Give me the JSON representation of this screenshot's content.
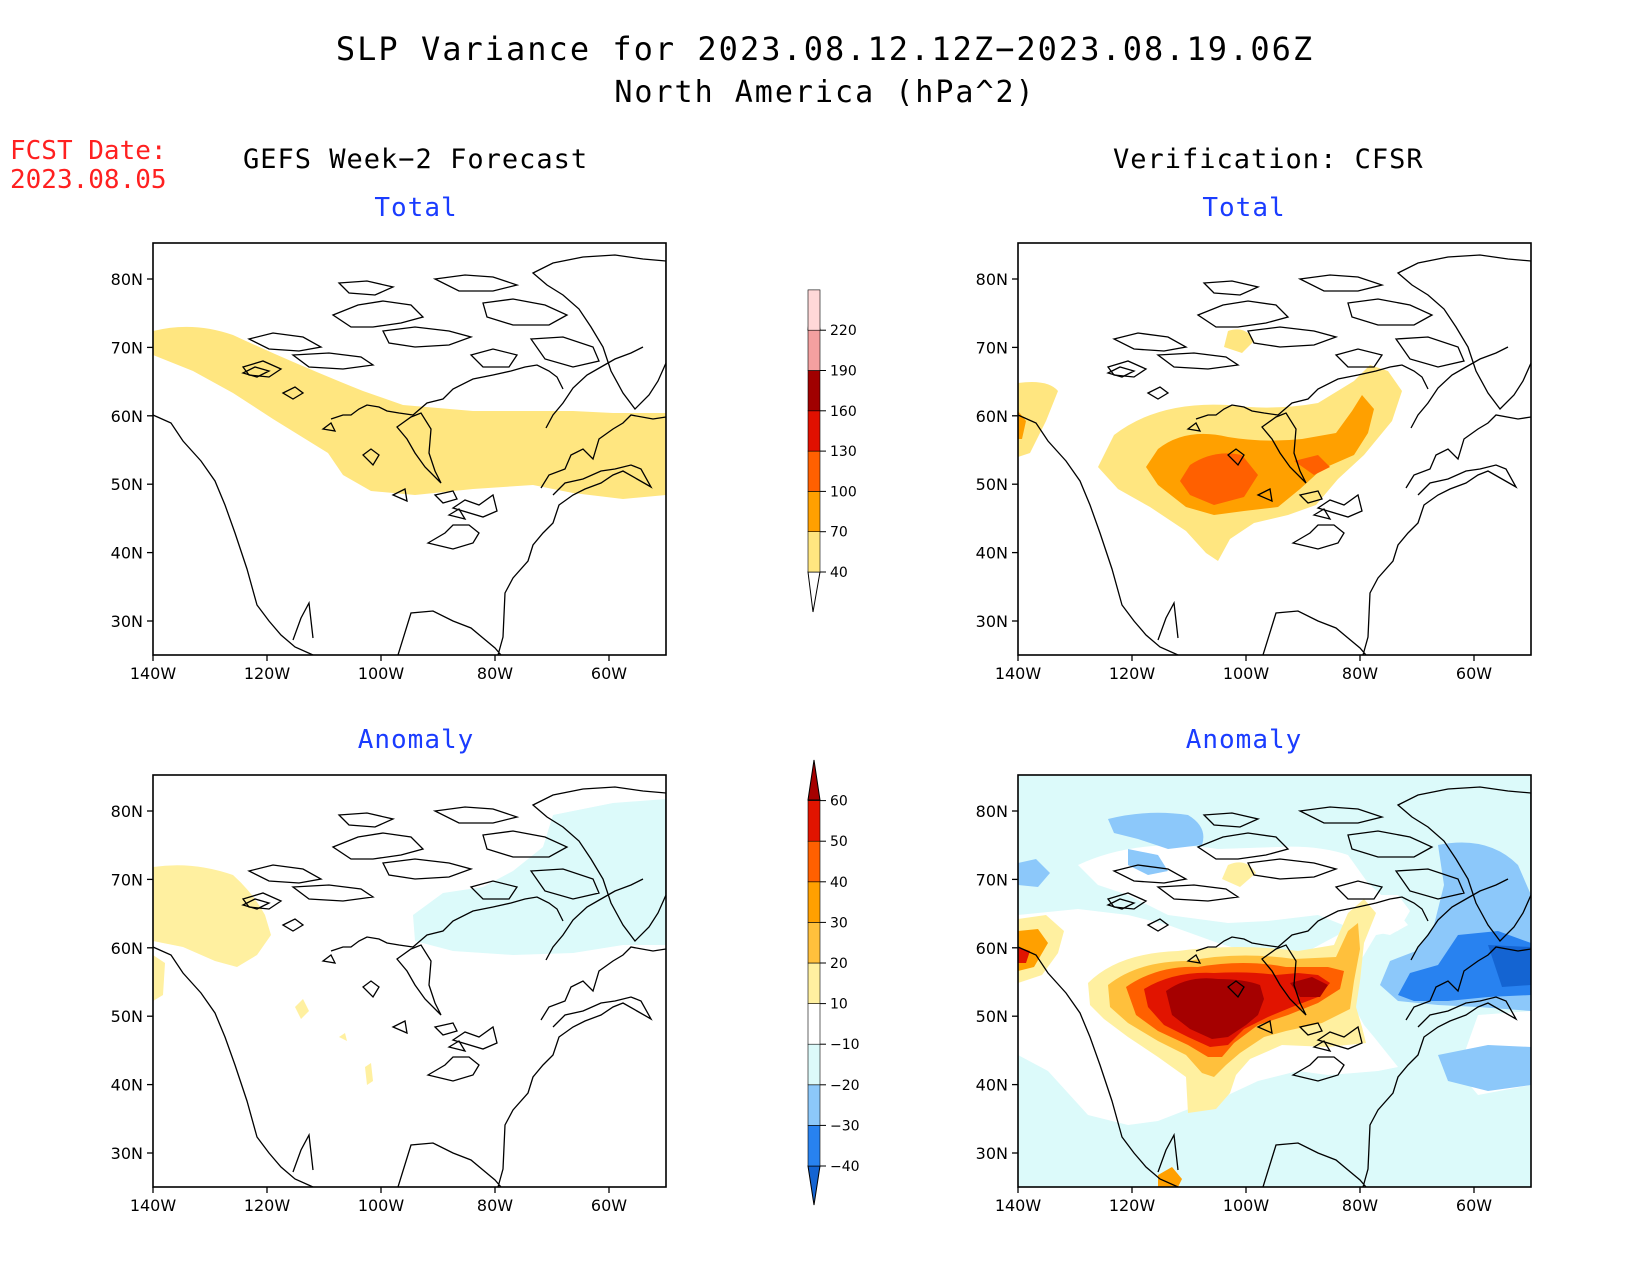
{
  "title_line1": "SLP Variance for 2023.08.12.12Z−2023.08.19.06Z",
  "title_line2": "North America (hPa^2)",
  "fcst_label": "FCST Date:",
  "fcst_date": "2023.08.05",
  "col_left": "GEFS Week−2 Forecast",
  "col_right": "Verification: CFSR",
  "panel_top": "Total",
  "panel_bottom": "Anomaly",
  "lat_labels": [
    "80N",
    "70N",
    "60N",
    "50N",
    "40N",
    "30N"
  ],
  "lon_labels": [
    "140W",
    "120W",
    "100W",
    "80W",
    "60W"
  ],
  "chart_data": {
    "type": "heatmap",
    "map_region": "North America",
    "lon_range": [
      -140,
      -50
    ],
    "lat_range": [
      25,
      85
    ],
    "total_colorbar": {
      "levels": [
        "40",
        "70",
        "100",
        "130",
        "160",
        "190",
        "220"
      ],
      "colors": [
        "#ffe680",
        "#ffa000",
        "#ff6000",
        "#e01000",
        "#a00000",
        "#f4a0a0",
        "#ffd8d8"
      ]
    },
    "anomaly_colorbar": {
      "levels": [
        "-40",
        "-30",
        "-20",
        "-10",
        "10",
        "20",
        "30",
        "40",
        "50",
        "60"
      ],
      "colors": [
        "#1464d2",
        "#2882f0",
        "#8cc8fa",
        "#dcfafa",
        "#ffffff",
        "#fff0a0",
        "#ffc03c",
        "#ffa000",
        "#ff6000",
        "#e11400",
        "#a50000"
      ]
    },
    "panels": [
      {
        "name": "GEFS Week-2 Forecast Total",
        "max_band": "40-70"
      },
      {
        "name": "Verification CFSR Total",
        "max_band": "100-130"
      },
      {
        "name": "GEFS Week-2 Forecast Anomaly",
        "range": "-20 to 20"
      },
      {
        "name": "Verification CFSR Anomaly",
        "range": "-40 to >60"
      }
    ]
  }
}
